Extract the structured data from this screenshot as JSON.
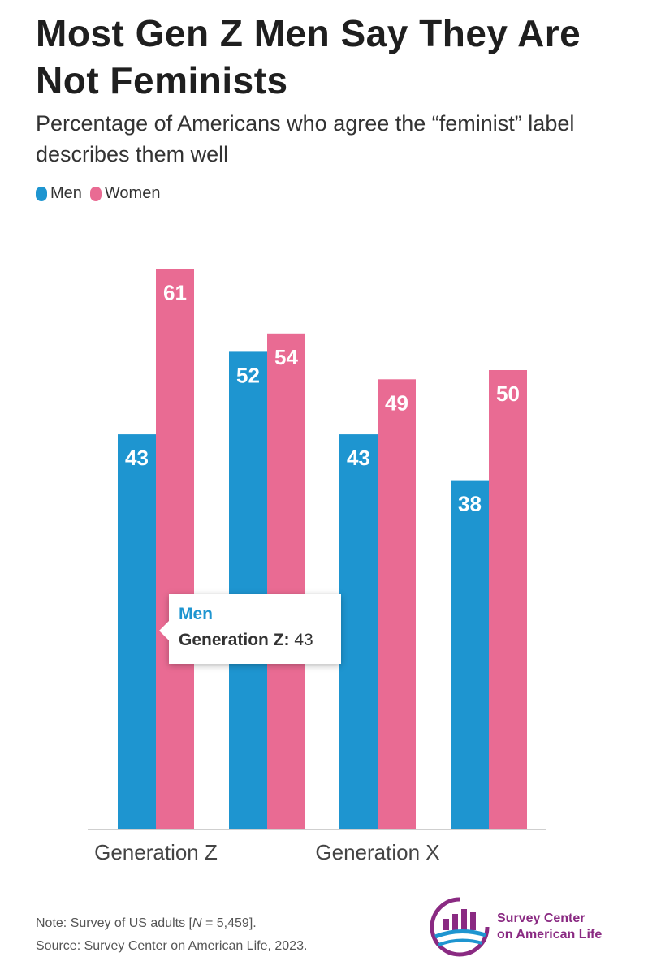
{
  "title": "Most Gen Z Men Say They Are Not Feminists",
  "subtitle": "Percentage of Americans who agree the “feminist” label describes them well",
  "chart_data": {
    "type": "bar",
    "x_labels": [
      "Generation Z",
      "",
      "Generation X",
      ""
    ],
    "series": [
      {
        "name": "Men",
        "color": "#1e95d0",
        "values": [
          43,
          52,
          43,
          38
        ]
      },
      {
        "name": "Women",
        "color": "#e96b93",
        "values": [
          61,
          54,
          49,
          50
        ]
      }
    ],
    "ylim": [
      0,
      70
    ],
    "grid": false,
    "legend": "top-left",
    "data_labels": true
  },
  "tooltip": {
    "series": "Men",
    "category": "Generation Z:",
    "value": "43"
  },
  "footer": {
    "note_prefix": "Note: Survey of US adults [",
    "note_n": "N",
    "note_suffix": " = 5,459].",
    "source": "Source: Survey Center on American Life, 2023."
  },
  "logo": {
    "line1": "Survey Center",
    "line2": "on American Life"
  },
  "colors": {
    "men": "#1e95d0",
    "women": "#e96b93",
    "logo": "#8a2a82"
  }
}
